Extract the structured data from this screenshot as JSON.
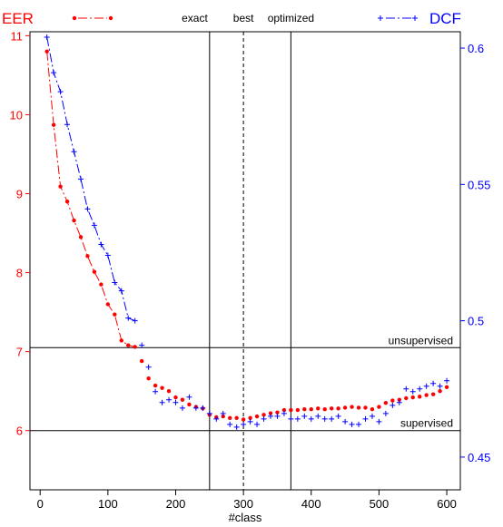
{
  "chart_data": {
    "type": "scatter",
    "xlabel": "#class",
    "x_ticks": [
      0,
      100,
      200,
      300,
      400,
      500,
      600
    ],
    "xlim": [
      -15,
      620
    ],
    "y_left": {
      "lim": [
        5.25,
        11.05
      ],
      "ticks": [
        6,
        7,
        8,
        9,
        10,
        11
      ],
      "color": "#ff0000"
    },
    "y_right": {
      "lim": [
        0.438,
        0.606
      ],
      "ticks": [
        0.45,
        0.5,
        0.55,
        0.6
      ],
      "tick_labels": [
        "0.45",
        "0.5",
        "0.55",
        "0.6"
      ],
      "color": "#0000ff"
    },
    "legend": {
      "left_label": "EER",
      "right_label": "DCF"
    },
    "hlines": [
      {
        "y": 7.05,
        "label": "unsupervised"
      },
      {
        "y": 6.0,
        "label": "supervised"
      }
    ],
    "vlines": [
      {
        "x": 250,
        "label": "exact",
        "style": "solid"
      },
      {
        "x": 300,
        "label": "best",
        "style": "dashed"
      },
      {
        "x": 370,
        "label": "optimized",
        "style": "solid"
      }
    ],
    "x": [
      10,
      20,
      30,
      40,
      50,
      60,
      70,
      80,
      90,
      100,
      110,
      120,
      130,
      140,
      150,
      160,
      170,
      180,
      190,
      200,
      210,
      220,
      230,
      240,
      250,
      260,
      270,
      280,
      290,
      300,
      310,
      320,
      330,
      340,
      350,
      360,
      370,
      380,
      390,
      400,
      410,
      420,
      430,
      440,
      450,
      460,
      470,
      480,
      490,
      500,
      510,
      520,
      530,
      540,
      550,
      560,
      570,
      580,
      590,
      600
    ],
    "series": [
      {
        "name": "EER",
        "axis": "left",
        "color": "#ff0000",
        "marker": "dot",
        "values": [
          10.8,
          9.87,
          9.09,
          8.9,
          8.66,
          8.45,
          8.21,
          8.01,
          7.85,
          7.6,
          7.47,
          7.14,
          7.08,
          7.06,
          6.88,
          6.66,
          6.57,
          6.54,
          6.5,
          6.42,
          6.39,
          6.33,
          6.3,
          6.28,
          6.2,
          6.17,
          6.18,
          6.16,
          6.16,
          6.14,
          6.16,
          6.18,
          6.2,
          6.22,
          6.23,
          6.26,
          6.26,
          6.26,
          6.27,
          6.27,
          6.28,
          6.27,
          6.28,
          6.28,
          6.29,
          6.3,
          6.29,
          6.29,
          6.27,
          6.3,
          6.35,
          6.38,
          6.39,
          6.41,
          6.42,
          6.43,
          6.45,
          6.46,
          6.5,
          6.55
        ]
      },
      {
        "name": "DCF",
        "axis": "right",
        "color": "#0000ff",
        "marker": "plus",
        "values": [
          0.604,
          0.591,
          0.584,
          0.572,
          0.562,
          0.552,
          0.541,
          0.535,
          0.528,
          0.524,
          0.514,
          0.511,
          0.501,
          0.5,
          0.491,
          0.483,
          0.474,
          0.47,
          0.471,
          0.47,
          0.468,
          0.472,
          0.468,
          0.468,
          0.466,
          0.464,
          0.466,
          0.462,
          0.461,
          0.462,
          0.463,
          0.462,
          0.464,
          0.465,
          0.465,
          0.466,
          0.464,
          0.464,
          0.465,
          0.464,
          0.465,
          0.464,
          0.464,
          0.465,
          0.463,
          0.462,
          0.462,
          0.464,
          0.465,
          0.463,
          0.466,
          0.469,
          0.47,
          0.475,
          0.474,
          0.475,
          0.476,
          0.477,
          0.476,
          0.478
        ]
      }
    ]
  }
}
